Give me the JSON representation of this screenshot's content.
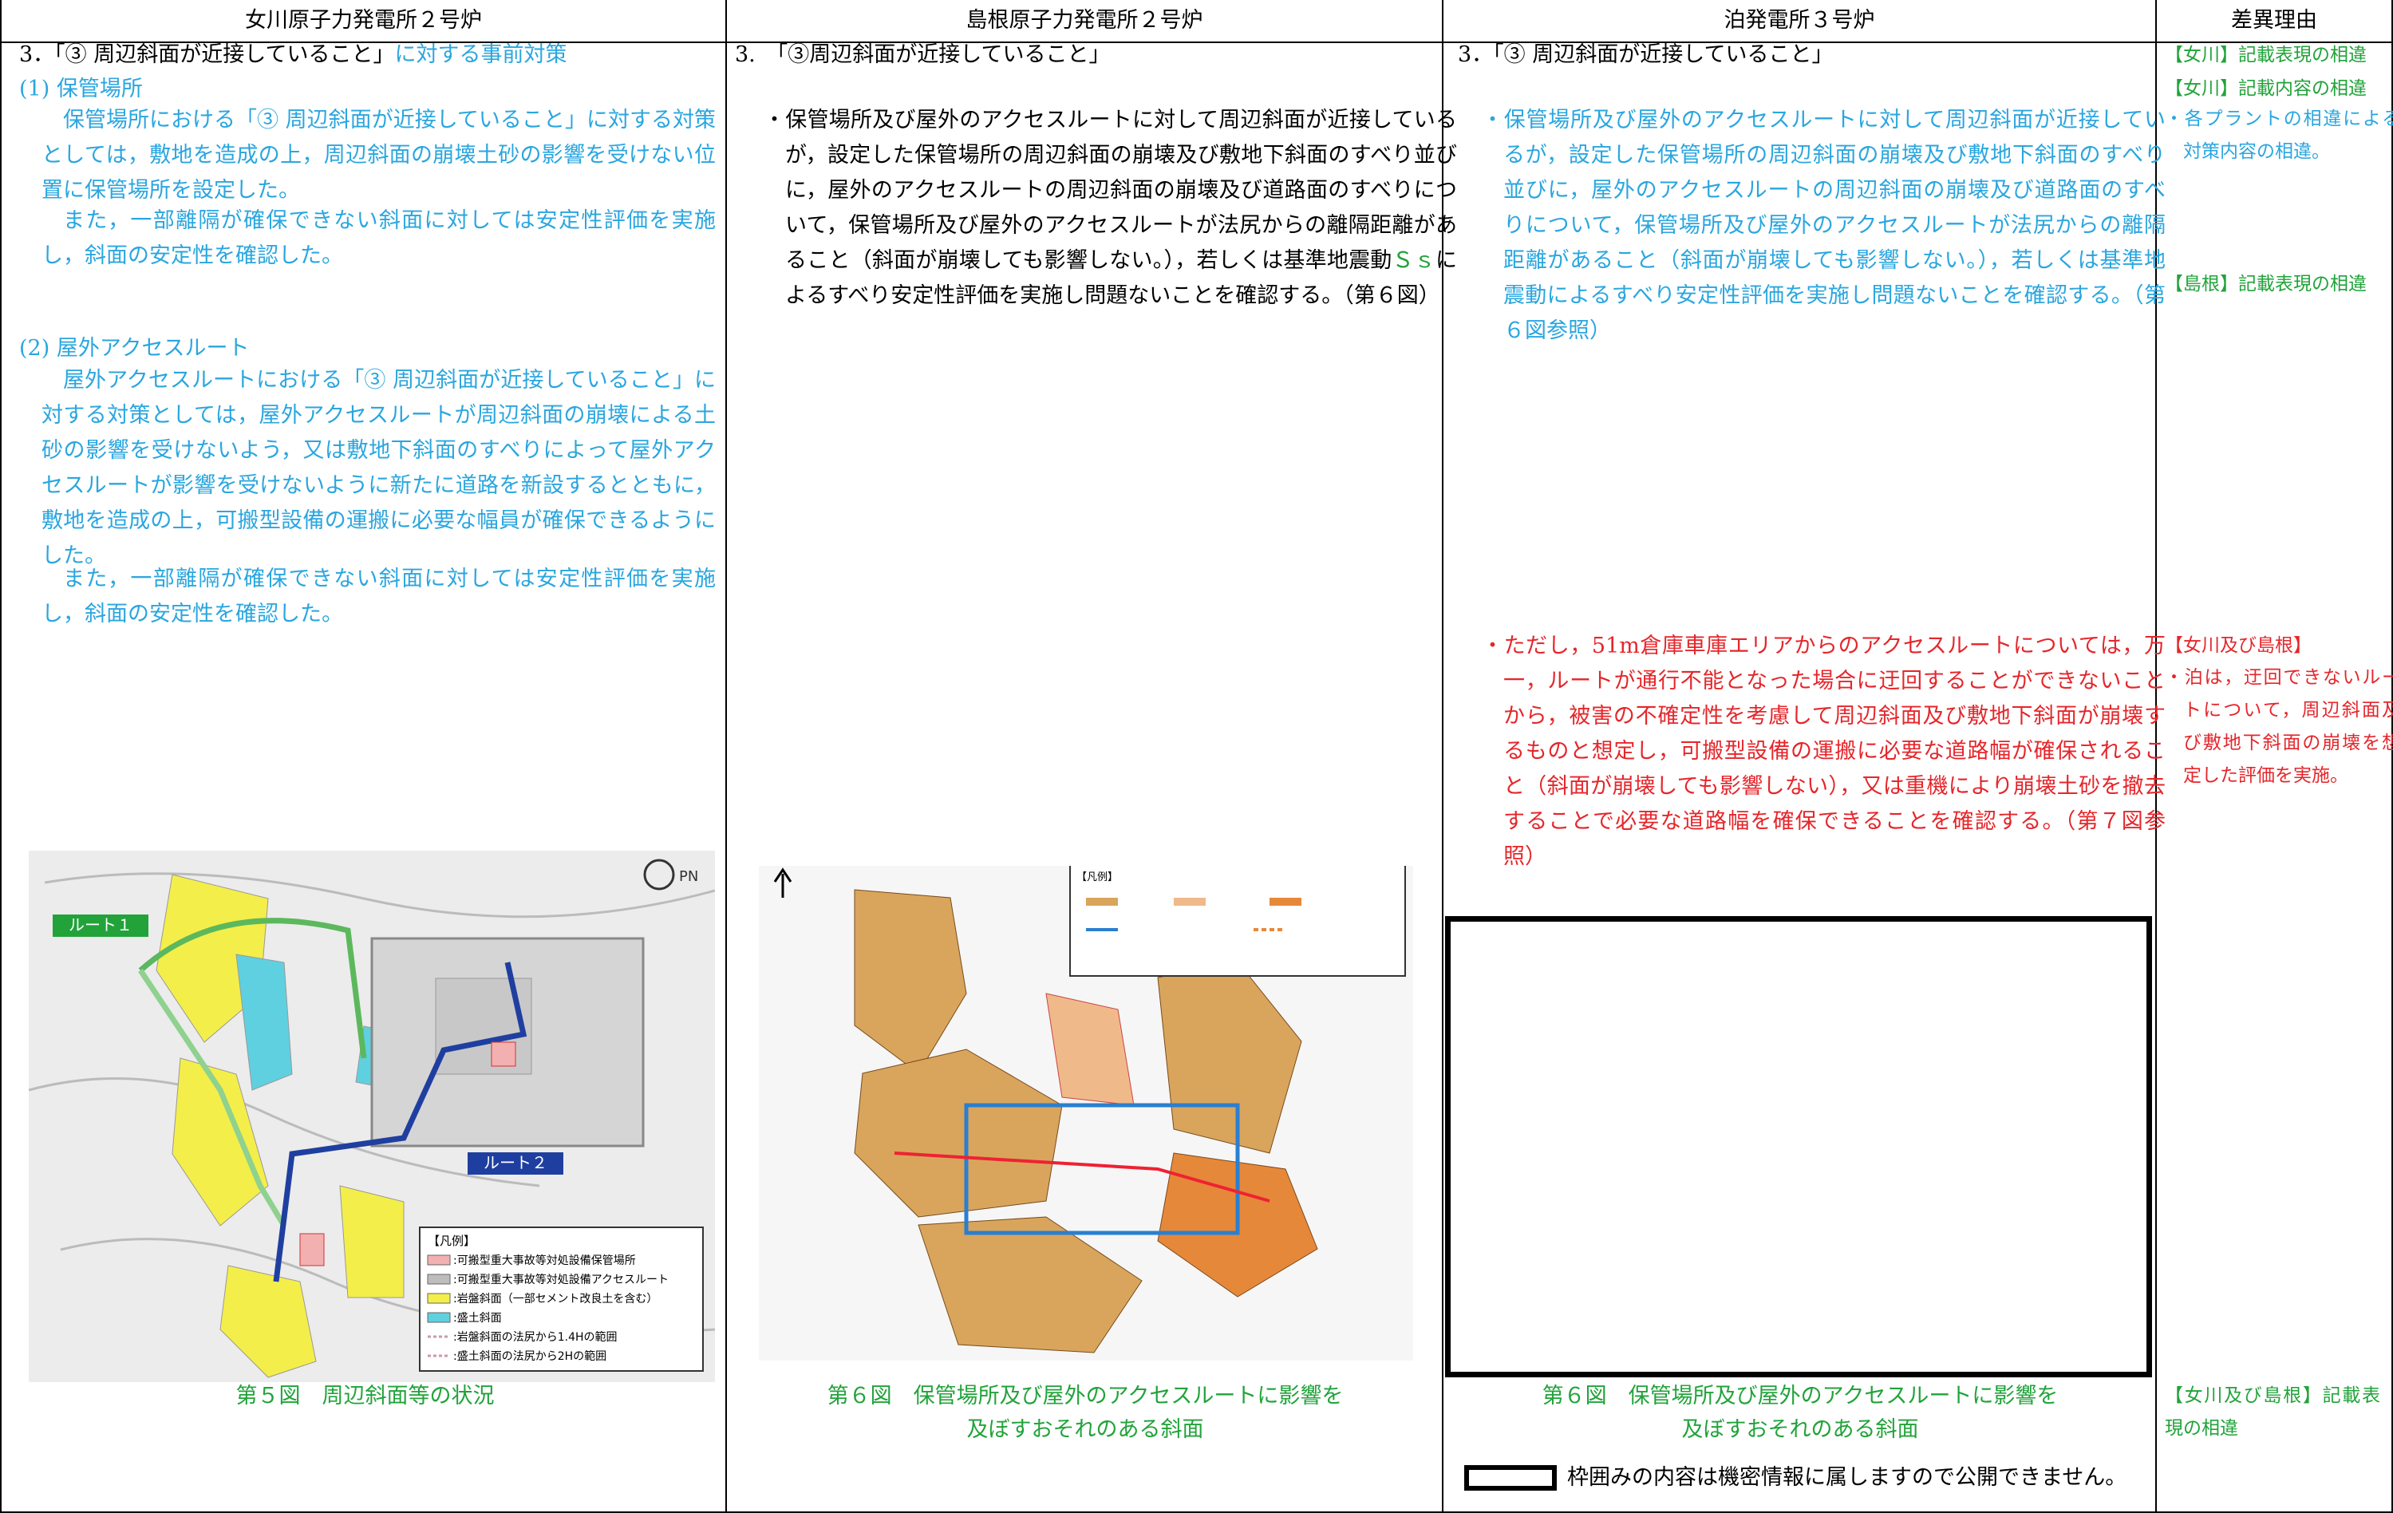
{
  "header": [
    "女川原子力発電所２号炉",
    "島根原子力発電所２号炉",
    "泊発電所３号炉",
    "差異理由"
  ],
  "onagawa": {
    "heading_black": "3．「③ 周辺斜面が近接していること」",
    "heading_color": "に対する事前対策",
    "section1_title": "(1)  保管場所",
    "section1_paragraphs": [
      "保管場所における「③ 周辺斜面が近接していること」に対する対策としては，敷地を造成の上，周辺斜面の崩壊土砂の影響を受けない位置に保管場所を設定した。",
      "また，一部離隔が確保できない斜面に対しては安定性評価を実施し，斜面の安定性を確認した。"
    ],
    "section2_title": "(2)  屋外アクセスルート",
    "section2_paragraphs": [
      "屋外アクセスルートにおける「③ 周辺斜面が近接していること」に対する対策としては，屋外アクセスルートが周辺斜面の崩壊による土砂の影響を受けないよう，又は敷地下斜面のすべりによって屋外アクセスルートが影響を受けないように新たに道路を新設するとともに，敷地を造成の上，可搬型設備の運搬に必要な幅員が確保できるようにした。",
      "また，一部離隔が確保できない斜面に対しては安定性評価を実施し，斜面の安定性を確認した。"
    ],
    "map": {
      "route1": "ルート１",
      "route2": "ルート２",
      "north": "PN",
      "legend_title": "【凡例】",
      "legend_items": [
        ":可搬型重大事故等対処設備保管場所",
        ":可搬型重大事故等対処設備アクセスルート",
        ":岩盤斜面（一部セメント改良土を含む）",
        ":盛土斜面",
        ":岩盤斜面の法尻から1.4Hの範囲",
        ":盛土斜面の法尻から2Hの範囲"
      ]
    },
    "figure_caption": "第５図　周辺斜面等の状況"
  },
  "shimane": {
    "heading": "3.　「③周辺斜面が近接していること」",
    "bullet_before": "・保管場所及び屋外のアクセスルートに対して周辺斜面が近接しているが，設定した保管場所の周辺斜面の崩壊及び敷地下斜面のすべり並びに，屋外のアクセスルートの周辺斜面の崩壊及び道路面のすべりについて，保管場所及び屋外のアクセスルートが法尻からの離隔距離があること（斜面が崩壊しても影響しない。），若しくは基準地震動",
    "bullet_highlight": "Ｓｓ",
    "bullet_after": "によるすべり安定性評価を実施し問題ないことを確認する。（第６図）",
    "map_legend_title": "【凡例】",
    "figure_caption": [
      "第６図　保管場所及び屋外のアクセスルートに影響を",
      "及ぼすおそれのある斜面"
    ]
  },
  "tomari": {
    "heading": "3．「③ 周辺斜面が近接していること」",
    "bullet": "・保管場所及び屋外のアクセスルートに対して周辺斜面が近接しているが，設定した保管場所の周辺斜面の崩壊及び敷地下斜面のすべり並びに，屋外のアクセスルートの周辺斜面の崩壊及び道路面のすべりについて，保管場所及び屋外のアクセスルートが法尻からの離隔距離があること（斜面が崩壊しても影響しない。），若しくは基準地震動によるすべり安定性評価を実施し問題ないことを確認する。（第６図参照）",
    "bullet_red": "・ただし，51m倉庫車庫エリアからのアクセスルートについては，万一，ルートが通行不能となった場合に迂回することができないことから，被害の不確定性を考慮して周辺斜面及び敷地下斜面が崩壊するものと想定し，可搬型設備の運搬に必要な道路幅が確保されること（斜面が崩壊しても影響しない），又は重機により崩壊土砂を撤去することで必要な道路幅を確保できることを確認する。",
    "bullet_red_ref": "（第７図参照）",
    "figure_caption": [
      "第６図　保管場所及び屋外のアクセスルートに影響を",
      "及ぼすおそれのある斜面"
    ],
    "note": "枠囲みの内容は機密情報に属しますので公開できません。"
  },
  "reasons": [
    "【女川】記載表現の相違",
    "【女川】記載内容の相違",
    "・各プラントの相違による対策内容の相違。",
    "【島根】記載表現の相違",
    "【女川及び島根】",
    "・泊は，迂回できないルートについて，周辺斜面及び敷地下斜面の崩壊を想定した評価を実施。",
    "【女川及び島根】記載表現の相違"
  ]
}
